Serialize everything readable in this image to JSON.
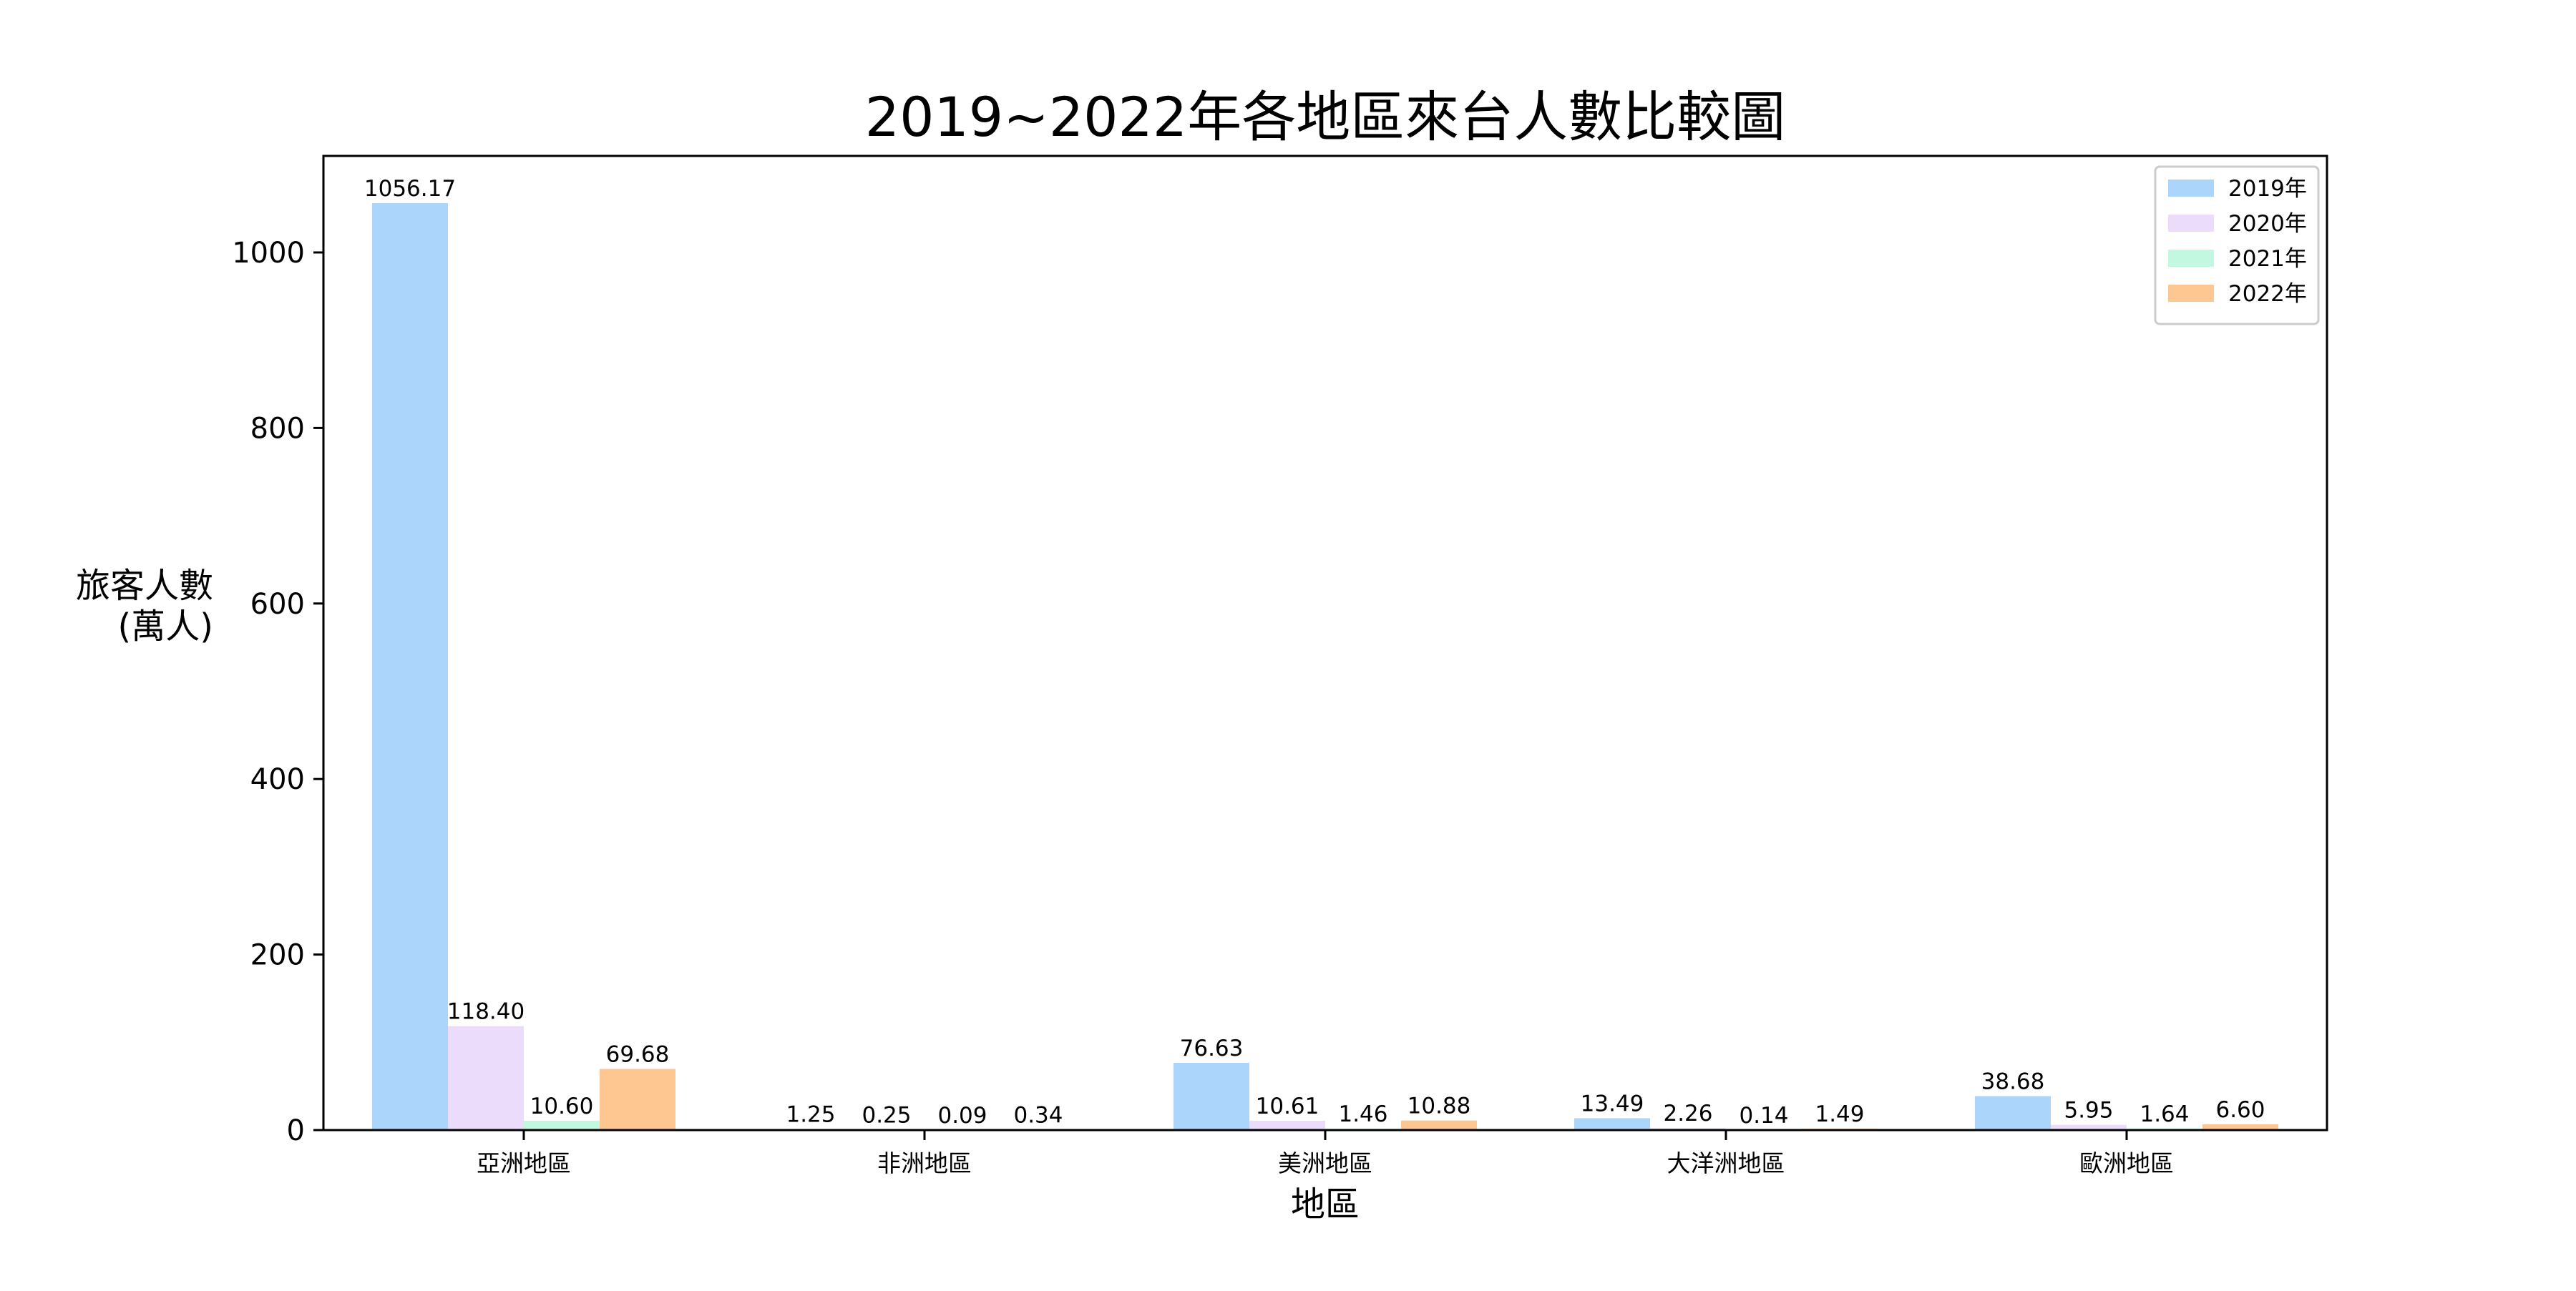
{
  "chart_data": {
    "type": "bar",
    "title": "2019~2022年各地區來台人數比較圖",
    "xlabel": "地區",
    "ylabel_lines": [
      "旅客人數",
      "(萬人)"
    ],
    "categories": [
      "亞洲地區",
      "非洲地區",
      "美洲地區",
      "大洋洲地區",
      "歐洲地區"
    ],
    "series": [
      {
        "name": "2019年",
        "color": "#abd5fb",
        "values": [
          1056.17,
          1.25,
          76.63,
          13.49,
          38.68
        ],
        "labels": [
          "1056.17",
          "1.25",
          "76.63",
          "13.49",
          "38.68"
        ]
      },
      {
        "name": "2020年",
        "color": "#ecdcfb",
        "values": [
          118.4,
          0.25,
          10.61,
          2.26,
          5.95
        ],
        "labels": [
          "118.40",
          "0.25",
          "10.61",
          "2.26",
          "5.95"
        ]
      },
      {
        "name": "2021年",
        "color": "#c2f8df",
        "values": [
          10.6,
          0.09,
          1.46,
          0.14,
          1.64
        ],
        "labels": [
          "10.60",
          "0.09",
          "1.46",
          "0.14",
          "1.64"
        ]
      },
      {
        "name": "2022年",
        "color": "#fec792",
        "values": [
          69.68,
          0.34,
          10.88,
          1.49,
          6.6
        ],
        "labels": [
          "69.68",
          "0.34",
          "10.88",
          "1.49",
          "6.60"
        ]
      }
    ],
    "ylim": [
      0,
      1110
    ],
    "yticks": [
      0,
      200,
      400,
      600,
      800,
      1000
    ],
    "legend_position": "top-right",
    "grid": false
  }
}
